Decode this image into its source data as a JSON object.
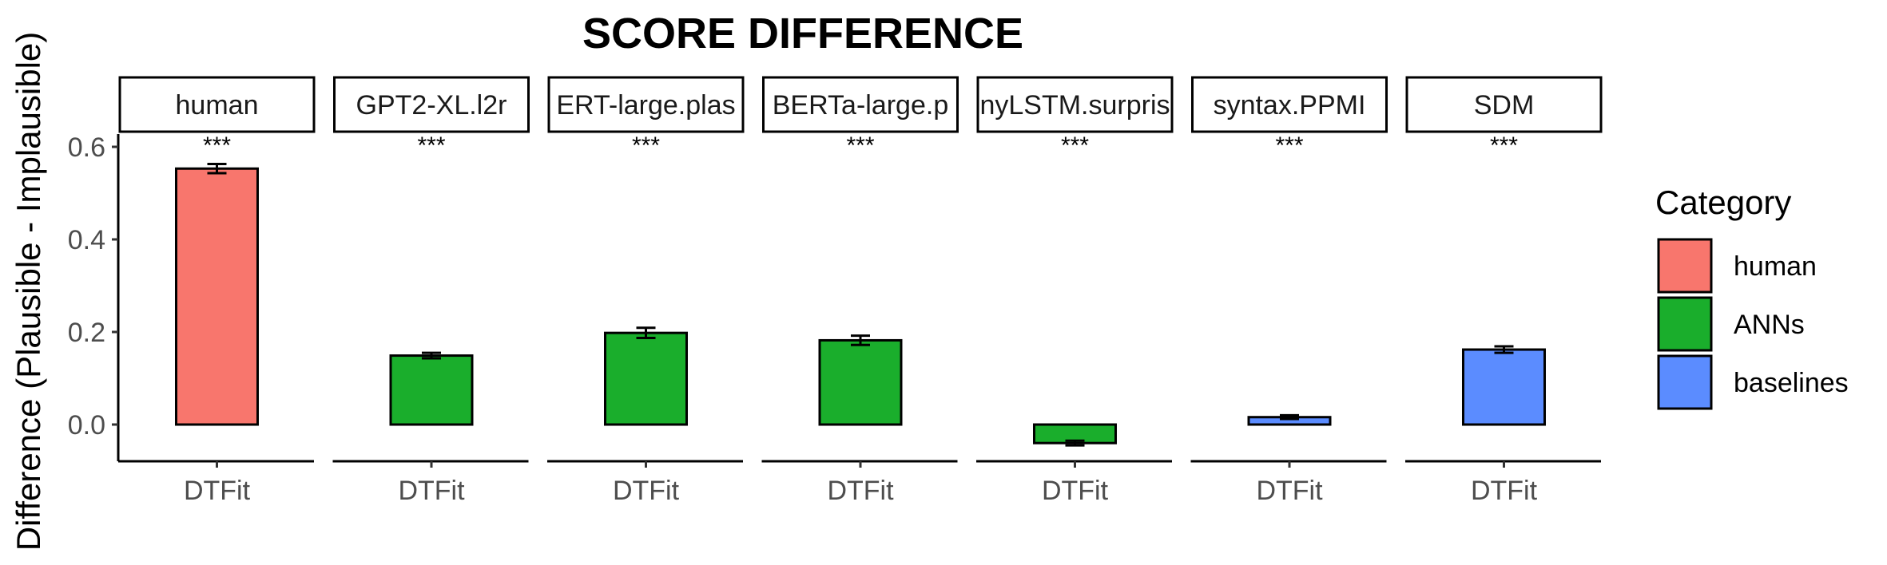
{
  "chart_data": {
    "type": "bar",
    "title": "SCORE DIFFERENCE",
    "ylabel": "Difference (Plausible - Implausible)",
    "ylim": [
      -0.08,
      0.63
    ],
    "yticks": [
      0.0,
      0.2,
      0.4,
      0.6
    ],
    "ytick_labels": [
      "0.0",
      "0.2",
      "0.4",
      "0.6"
    ],
    "facets": [
      {
        "label": "human",
        "display": "human",
        "category": "human",
        "x": "DTFit",
        "value": 0.553,
        "error": 0.01,
        "sig": "***"
      },
      {
        "label": "GPT2-XL.l2r",
        "display": "GPT2-XL.l2r",
        "category": "ANNs",
        "x": "DTFit",
        "value": 0.149,
        "error": 0.006,
        "sig": "***"
      },
      {
        "label": "BERT-large.plas",
        "display": "ERT-large.plas",
        "category": "ANNs",
        "x": "DTFit",
        "value": 0.198,
        "error": 0.011,
        "sig": "***"
      },
      {
        "label": "RoBERTa-large.p",
        "display": "BERTa-large.p",
        "category": "ANNs",
        "x": "DTFit",
        "value": 0.182,
        "error": 0.01,
        "sig": "***"
      },
      {
        "label": "tinyLSTM.surpris",
        "display": "nyLSTM.surpris",
        "category": "ANNs",
        "x": "DTFit",
        "value": -0.04,
        "error": 0.005,
        "sig": "***"
      },
      {
        "label": "syntax.PPMI",
        "display": "syntax.PPMI",
        "category": "baselines",
        "x": "DTFit",
        "value": 0.016,
        "error": 0.004,
        "sig": "***"
      },
      {
        "label": "SDM",
        "display": "SDM",
        "category": "baselines",
        "x": "DTFit",
        "value": 0.162,
        "error": 0.007,
        "sig": "***"
      }
    ],
    "legend": {
      "title": "Category",
      "position": "right",
      "entries": [
        {
          "name": "human",
          "color": "#F8766D"
        },
        {
          "name": "ANNs",
          "color": "#1AAE2C"
        },
        {
          "name": "baselines",
          "color": "#5B8CFF"
        }
      ]
    },
    "grid": false
  }
}
